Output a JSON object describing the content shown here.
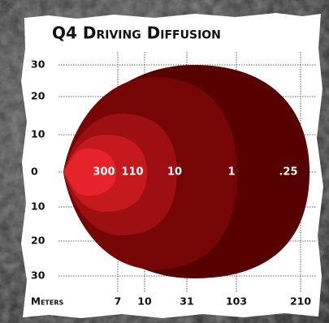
{
  "title": "Q4 Driving Diffusion",
  "y_labels": [
    "30",
    "20",
    "10",
    "0",
    "10",
    "20",
    "30"
  ],
  "x_axis_label": "Meters",
  "x_labels": [
    "7",
    "10",
    "31",
    "103",
    "210"
  ],
  "zone_labels": [
    "300",
    "110",
    "10",
    "1",
    ".25"
  ]
}
